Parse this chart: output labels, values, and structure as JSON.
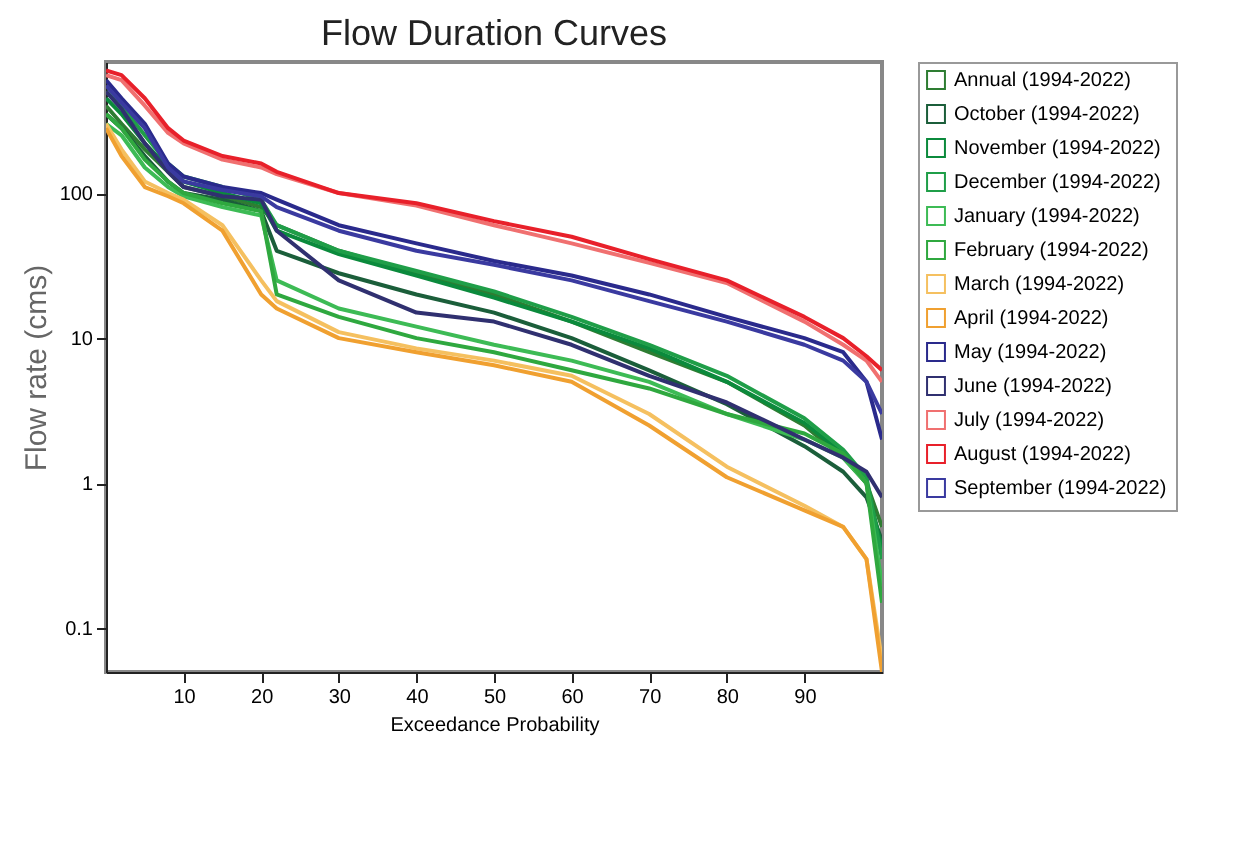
{
  "chart_data": {
    "type": "line",
    "title": "Flow Duration Curves",
    "xlabel": "Exceedance Probability",
    "ylabel": "Flow rate (cms)",
    "x": [
      0,
      2,
      5,
      8,
      10,
      15,
      20,
      22,
      30,
      40,
      50,
      60,
      70,
      80,
      90,
      95,
      98,
      100
    ],
    "xlim": [
      0,
      100
    ],
    "xticks": [
      10,
      20,
      30,
      40,
      50,
      60,
      70,
      80,
      90
    ],
    "ylim": [
      0.05,
      800
    ],
    "yticks": [
      0.1,
      1,
      10,
      100
    ],
    "log": true,
    "grid": false,
    "legend": "right",
    "series": [
      {
        "name": "Annual (1994-2022)",
        "color": "#2e7d32",
        "values": [
          400,
          300,
          200,
          140,
          110,
          95,
          80,
          60,
          40,
          28,
          20,
          13,
          8,
          5,
          2.5,
          1.5,
          1,
          0.5
        ]
      },
      {
        "name": "October (1994-2022)",
        "color": "#1b5e3a",
        "values": [
          350,
          280,
          180,
          120,
          100,
          90,
          75,
          40,
          28,
          20,
          15,
          10,
          6,
          3.5,
          1.8,
          1.2,
          0.8,
          0.4
        ]
      },
      {
        "name": "November (1994-2022)",
        "color": "#0b8a3c",
        "values": [
          450,
          350,
          220,
          150,
          120,
          100,
          85,
          55,
          38,
          27,
          19,
          13,
          8.5,
          5,
          2.6,
          1.6,
          1,
          0.35
        ]
      },
      {
        "name": "December (1994-2022)",
        "color": "#1f9e48",
        "values": [
          500,
          400,
          250,
          160,
          130,
          110,
          90,
          60,
          40,
          29,
          21,
          14,
          9,
          5.5,
          2.8,
          1.7,
          1.1,
          0.3
        ]
      },
      {
        "name": "January (1994-2022)",
        "color": "#3dbb55",
        "values": [
          300,
          250,
          150,
          110,
          95,
          80,
          70,
          25,
          16,
          12,
          9,
          7,
          5,
          3,
          2,
          1.5,
          1,
          0.2
        ]
      },
      {
        "name": "February (1994-2022)",
        "color": "#2fa83f",
        "values": [
          350,
          280,
          170,
          120,
          100,
          85,
          75,
          20,
          14,
          10,
          8,
          6,
          4.5,
          3,
          2.2,
          1.6,
          1,
          0.15
        ]
      },
      {
        "name": "March (1994-2022)",
        "color": "#f5c060",
        "values": [
          300,
          200,
          120,
          100,
          90,
          60,
          25,
          18,
          11,
          8.5,
          7,
          5.5,
          3,
          1.3,
          0.7,
          0.5,
          0.3,
          0.06
        ]
      },
      {
        "name": "April (1994-2022)",
        "color": "#f0a030",
        "values": [
          280,
          180,
          110,
          95,
          85,
          55,
          20,
          16,
          10,
          8,
          6.5,
          5,
          2.5,
          1.1,
          0.65,
          0.5,
          0.3,
          0.05
        ]
      },
      {
        "name": "May (1994-2022)",
        "color": "#2a2a8c",
        "values": [
          600,
          450,
          300,
          160,
          130,
          110,
          100,
          90,
          60,
          45,
          34,
          27,
          20,
          14,
          10,
          8,
          5,
          2
        ]
      },
      {
        "name": "June (1994-2022)",
        "color": "#303070",
        "values": [
          500,
          380,
          220,
          140,
          110,
          95,
          90,
          55,
          25,
          15,
          13,
          9,
          5.5,
          3.6,
          2,
          1.5,
          1.2,
          0.8
        ]
      },
      {
        "name": "July (1994-2022)",
        "color": "#f07070",
        "values": [
          650,
          600,
          400,
          260,
          220,
          170,
          150,
          135,
          100,
          82,
          60,
          45,
          33,
          24,
          13,
          9,
          7,
          5
        ]
      },
      {
        "name": "August (1994-2022)",
        "color": "#e8202a",
        "values": [
          700,
          650,
          450,
          280,
          230,
          180,
          160,
          140,
          100,
          85,
          64,
          50,
          35,
          25,
          14,
          10,
          7.5,
          6
        ]
      },
      {
        "name": "September (1994-2022)",
        "color": "#3a3aa0",
        "values": [
          550,
          420,
          280,
          150,
          120,
          105,
          95,
          80,
          55,
          40,
          32,
          25,
          18,
          13,
          9,
          7,
          5,
          3
        ]
      }
    ]
  }
}
